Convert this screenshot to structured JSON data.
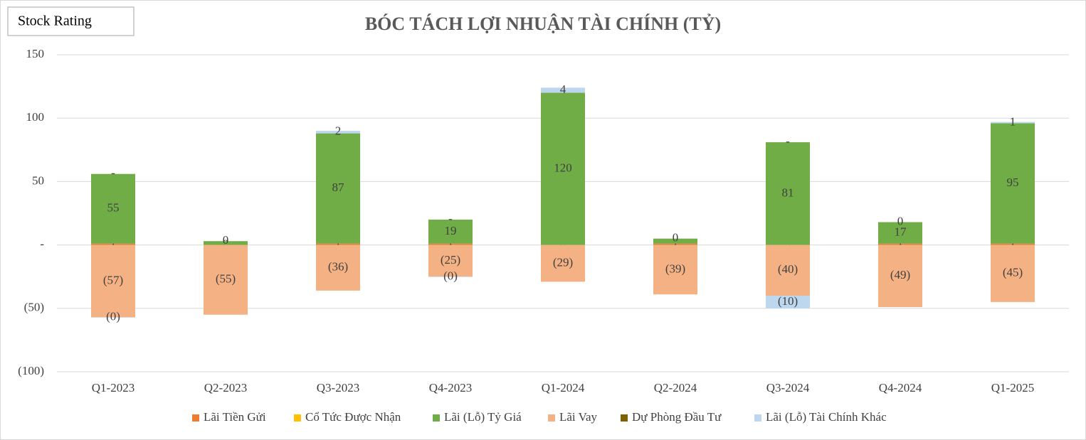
{
  "badge": "Stock Rating",
  "chart_data": {
    "type": "stacked-bar",
    "title": "BÓC TÁCH LỢI NHUẬN TÀI CHÍNH (TỶ)",
    "categories": [
      "Q1-2023",
      "Q2-2023",
      "Q3-2023",
      "Q4-2023",
      "Q1-2024",
      "Q2-2024",
      "Q3-2024",
      "Q4-2024",
      "Q1-2025"
    ],
    "series": [
      {
        "name": "Lãi Tiền Gửi",
        "color": "#ed7d31",
        "values": [
          1,
          0,
          1,
          1,
          0,
          1,
          0,
          1,
          1
        ]
      },
      {
        "name": "Cổ Tức Được Nhận",
        "color": "#ffc000",
        "values": [
          0,
          0,
          0,
          0,
          0,
          0,
          0,
          0,
          0
        ],
        "value_labels": [
          null,
          null,
          null,
          null,
          null,
          null,
          null,
          null,
          null
        ]
      },
      {
        "name": "Lãi (Lỗ) Tỷ Giá",
        "color": "#70ad47",
        "values": [
          55,
          3,
          87,
          19,
          120,
          4,
          81,
          17,
          95
        ],
        "value_labels": [
          "55",
          null,
          "87",
          "19",
          "120",
          null,
          "81",
          "17",
          "95"
        ]
      },
      {
        "name": "Lãi Vay",
        "color": "#f4b183",
        "values": [
          -57,
          -55,
          -36,
          -25,
          -29,
          -39,
          -40,
          -49,
          -45
        ],
        "value_labels": [
          "(57)",
          "(55)",
          "(36)",
          "(25)",
          "(29)",
          "(39)",
          "(40)",
          "(49)",
          "(45)"
        ]
      },
      {
        "name": "Dự Phòng Đầu Tư",
        "color": "#7f6000",
        "values": [
          0,
          0,
          0,
          0,
          0,
          0,
          0,
          0,
          0
        ],
        "value_labels": [
          "-",
          "0",
          null,
          "-",
          null,
          "0",
          "-",
          "0",
          null
        ]
      },
      {
        "name": "Lãi (Lỗ) Tài Chính Khác",
        "color": "#bdd7ee",
        "values": [
          -0.3,
          0,
          2,
          -0.3,
          4,
          0,
          -10,
          0,
          1
        ],
        "value_labels": [
          "(0)",
          null,
          "2",
          "(0)",
          "4",
          null,
          "(10)",
          null,
          "1"
        ]
      }
    ],
    "ylim": [
      -100,
      150
    ],
    "yticks": [
      {
        "value": -100,
        "label": "(100)"
      },
      {
        "value": -50,
        "label": "(50)"
      },
      {
        "value": 0,
        "label": "-"
      },
      50,
      100,
      150
    ],
    "grid": true
  }
}
